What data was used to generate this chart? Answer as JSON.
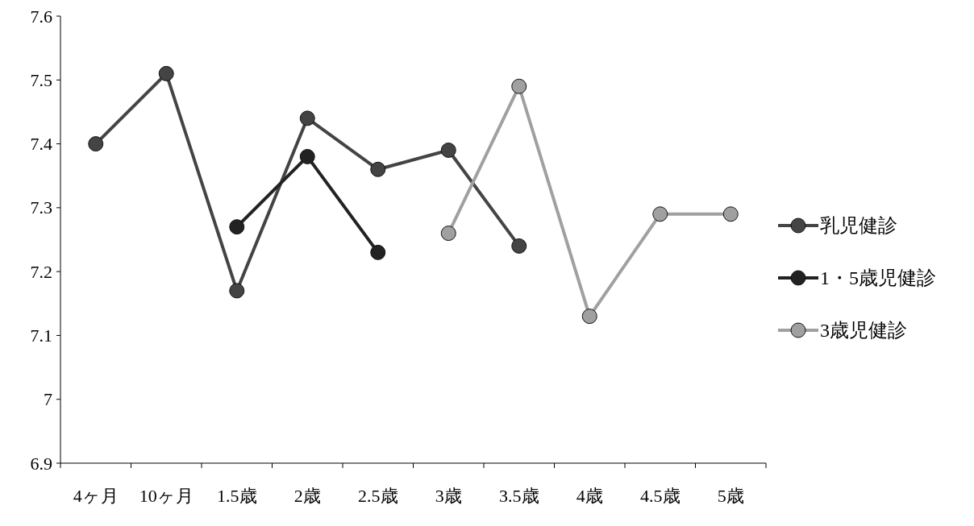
{
  "chart_data": {
    "type": "line",
    "categories": [
      "4ヶ月",
      "10ヶ月",
      "1.5歳",
      "2歳",
      "2.5歳",
      "3歳",
      "3.5歳",
      "4歳",
      "4.5歳",
      "5歳"
    ],
    "series": [
      {
        "name": "乳児健診",
        "color": "#444444",
        "values": [
          7.4,
          7.51,
          7.17,
          7.44,
          7.36,
          7.39,
          7.24,
          null,
          null,
          null
        ]
      },
      {
        "name": "1・5歳児健診",
        "color": "#222222",
        "values": [
          null,
          null,
          7.27,
          7.38,
          7.23,
          null,
          null,
          null,
          null,
          null
        ]
      },
      {
        "name": "3歳児健診",
        "color": "#a0a0a0",
        "values": [
          null,
          null,
          null,
          null,
          null,
          7.26,
          7.49,
          7.13,
          7.29,
          7.29
        ]
      }
    ],
    "ylim": [
      6.9,
      7.6
    ],
    "yticks": [
      6.9,
      7,
      7.1,
      7.2,
      7.3,
      7.4,
      7.5,
      7.6
    ],
    "legend": "right",
    "marker": "circle",
    "line_style": "solid",
    "grid": false
  }
}
